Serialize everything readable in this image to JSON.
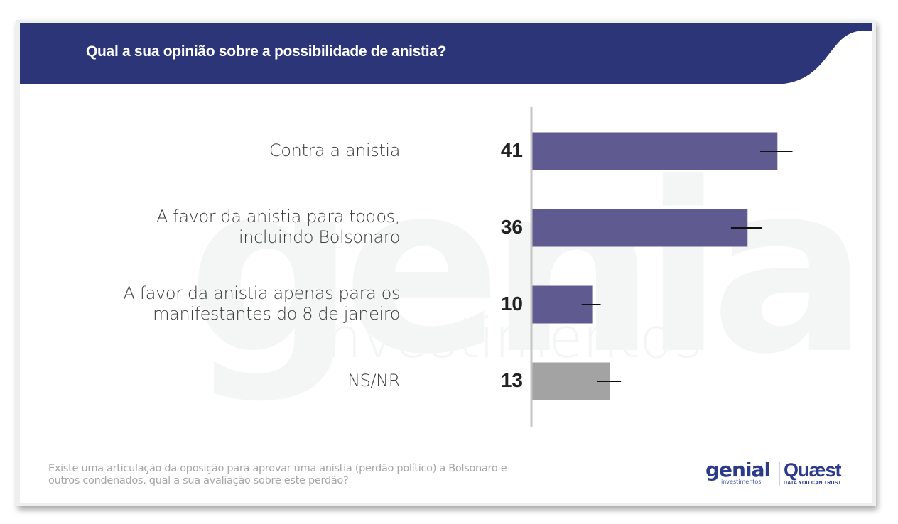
{
  "header": {
    "title": "Qual a sua opinião sobre a possibilidade de anistia?"
  },
  "colors": {
    "banner": "#2b3577",
    "bar_primary": "#5f5b91",
    "bar_neutral": "#a3a3a3",
    "axis": "#c4c4c4",
    "error_bar": "#111111"
  },
  "watermark": {
    "word": "genial",
    "sub": "investimentos"
  },
  "chart_data": {
    "type": "bar",
    "orientation": "horizontal",
    "title": "Qual a sua opinião sobre a possibilidade de anistia?",
    "xlabel": "",
    "ylabel": "",
    "xlim": [
      0,
      50
    ],
    "grid": false,
    "categories": [
      [
        "Contra a anistia"
      ],
      [
        "A favor da anistia para todos,",
        "incluindo Bolsonaro"
      ],
      [
        "A favor da anistia apenas para os",
        "manifestantes do 8 de janeiro"
      ],
      [
        "NS/NR"
      ]
    ],
    "values": [
      41,
      36,
      10,
      13
    ],
    "value_labels": [
      "41",
      "36",
      "10",
      "13"
    ],
    "error_margins": [
      2.7,
      2.6,
      1.6,
      2.0
    ],
    "bar_colors": [
      "#5f5b91",
      "#5f5b91",
      "#5f5b91",
      "#a3a3a3"
    ]
  },
  "footnote": {
    "lines": [
      "Existe uma articulação da oposição para aprovar uma anistia (perdão político) a Bolsonaro e",
      "outros condenados. qual a sua avaliação sobre este perdão?"
    ]
  },
  "logos": {
    "genial": {
      "word": "genial",
      "sub": "investimentos"
    },
    "quaest": {
      "word": "Quæst",
      "sub": "DATA YOU CAN TRUST"
    }
  }
}
